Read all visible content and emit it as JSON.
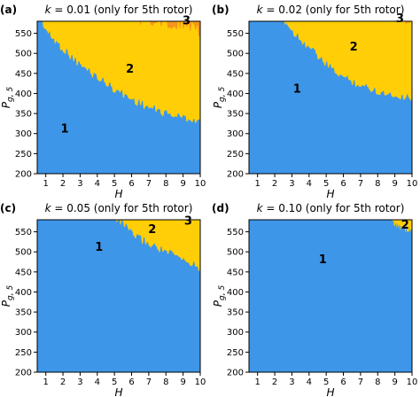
{
  "colors": {
    "region1": "#3d96e8",
    "region2": "#ffce06",
    "region3": "#f7941d",
    "axis": "#000000"
  },
  "chart_data": [
    {
      "type": "heatmap",
      "panel_label": "(a)",
      "title_k": "k",
      "title_value": " = 0.01 (only for 5th rotor)",
      "xlabel": "H",
      "ylabel_main": "P",
      "ylabel_sub": "g, 5",
      "xlim": [
        0.5,
        10
      ],
      "ylim": [
        200,
        580
      ],
      "xticks": [
        1,
        2,
        3,
        4,
        5,
        6,
        7,
        8,
        9,
        10
      ],
      "yticks": [
        200,
        250,
        300,
        350,
        400,
        450,
        500,
        550
      ],
      "boundary_1_2": [
        [
          0.5,
          597
        ],
        [
          1.2,
          545
        ],
        [
          2,
          510
        ],
        [
          3,
          470
        ],
        [
          4,
          440
        ],
        [
          5,
          410
        ],
        [
          6,
          385
        ],
        [
          7,
          365
        ],
        [
          8,
          350
        ],
        [
          9,
          340
        ],
        [
          10,
          330
        ]
      ],
      "boundary_2_3": [
        [
          4.6,
          597
        ],
        [
          5,
          592
        ],
        [
          6,
          588
        ],
        [
          7,
          584
        ],
        [
          8,
          578
        ],
        [
          9,
          570
        ],
        [
          10,
          555
        ]
      ],
      "region_labels": [
        {
          "text": "1",
          "H": 2.1,
          "P": 310
        },
        {
          "text": "2",
          "H": 5.9,
          "P": 460
        },
        {
          "text": "3",
          "H": 9.2,
          "P": 580
        }
      ]
    },
    {
      "type": "heatmap",
      "panel_label": "(b)",
      "title_k": "k",
      "title_value": " = 0.02 (only for 5th rotor)",
      "xlabel": "H",
      "ylabel_main": "P",
      "ylabel_sub": "g, 5",
      "xlim": [
        0.5,
        10
      ],
      "ylim": [
        200,
        580
      ],
      "xticks": [
        1,
        2,
        3,
        4,
        5,
        6,
        7,
        8,
        9,
        10
      ],
      "yticks": [
        200,
        250,
        300,
        350,
        400,
        450,
        500,
        550
      ],
      "boundary_1_2": [
        [
          2.3,
          597
        ],
        [
          3,
          555
        ],
        [
          4,
          515
        ],
        [
          5,
          470
        ],
        [
          6,
          440
        ],
        [
          7,
          420
        ],
        [
          8,
          405
        ],
        [
          9,
          395
        ],
        [
          10,
          390
        ]
      ],
      "boundary_2_3": [
        [
          7.4,
          597
        ],
        [
          8,
          592
        ],
        [
          9,
          588
        ],
        [
          10,
          584
        ]
      ],
      "region_labels": [
        {
          "text": "1",
          "H": 3.3,
          "P": 410
        },
        {
          "text": "2",
          "H": 6.6,
          "P": 515
        },
        {
          "text": "3",
          "H": 9.3,
          "P": 586
        }
      ]
    },
    {
      "type": "heatmap",
      "panel_label": "(c)",
      "title_k": "k",
      "title_value": " = 0.05 (only for 5th rotor)",
      "xlabel": "H",
      "ylabel_main": "P",
      "ylabel_sub": "g, 5",
      "xlim": [
        0.5,
        10
      ],
      "ylim": [
        200,
        580
      ],
      "xticks": [
        1,
        2,
        3,
        4,
        5,
        6,
        7,
        8,
        9,
        10
      ],
      "yticks": [
        200,
        250,
        300,
        350,
        400,
        450,
        500,
        550
      ],
      "boundary_1_2": [
        [
          4.7,
          597
        ],
        [
          5.5,
          570
        ],
        [
          6,
          545
        ],
        [
          7,
          520
        ],
        [
          8,
          500
        ],
        [
          9,
          480
        ],
        [
          10,
          460
        ]
      ],
      "boundary_2_3": [],
      "region_labels": [
        {
          "text": "1",
          "H": 4.1,
          "P": 510
        },
        {
          "text": "2",
          "H": 7.2,
          "P": 555
        },
        {
          "text": "3",
          "H": 9.3,
          "P": 576
        }
      ]
    },
    {
      "type": "heatmap",
      "panel_label": "(d)",
      "title_k": "k",
      "title_value": " = 0.10 (only for 5th rotor)",
      "xlabel": "H",
      "ylabel_main": "P",
      "ylabel_sub": "g, 5",
      "xlim": [
        0.5,
        10
      ],
      "ylim": [
        200,
        580
      ],
      "xticks": [
        1,
        2,
        3,
        4,
        5,
        6,
        7,
        8,
        9,
        10
      ],
      "yticks": [
        200,
        250,
        300,
        350,
        400,
        450,
        500,
        550
      ],
      "boundary_1_2": [
        [
          8,
          597
        ],
        [
          8.5,
          585
        ],
        [
          9,
          572
        ],
        [
          9.5,
          560
        ],
        [
          10,
          550
        ]
      ],
      "boundary_2_3": [],
      "region_labels": [
        {
          "text": "1",
          "H": 4.8,
          "P": 480
        },
        {
          "text": "2",
          "H": 9.6,
          "P": 566
        }
      ]
    }
  ]
}
